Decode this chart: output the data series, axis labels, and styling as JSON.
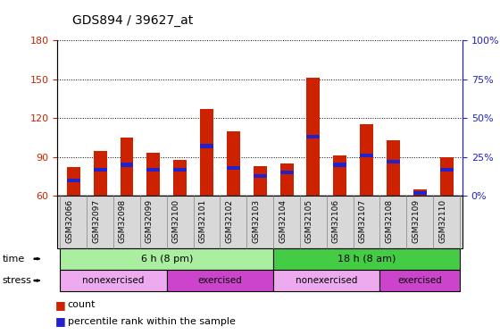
{
  "title": "GDS894 / 39627_at",
  "samples": [
    "GSM32066",
    "GSM32097",
    "GSM32098",
    "GSM32099",
    "GSM32100",
    "GSM32101",
    "GSM32102",
    "GSM32103",
    "GSM32104",
    "GSM32105",
    "GSM32106",
    "GSM32107",
    "GSM32108",
    "GSM32109",
    "GSM32110"
  ],
  "count_values": [
    82,
    95,
    105,
    93,
    88,
    127,
    110,
    83,
    85,
    151,
    91,
    115,
    103,
    65,
    90
  ],
  "percentile_values": [
    10,
    17,
    20,
    17,
    17,
    32,
    18,
    13,
    15,
    38,
    20,
    26,
    22,
    2,
    17
  ],
  "ylim_left": [
    60,
    180
  ],
  "ylim_right": [
    0,
    100
  ],
  "yticks_left": [
    60,
    90,
    120,
    150,
    180
  ],
  "yticks_right": [
    0,
    25,
    50,
    75,
    100
  ],
  "bar_color": "#cc2200",
  "percentile_color": "#2222cc",
  "bar_width": 0.5,
  "percentile_bar_height": 3.0,
  "time_groups": [
    {
      "label": "6 h (8 pm)",
      "start": 0,
      "end": 7,
      "color": "#aaeea0"
    },
    {
      "label": "18 h (8 am)",
      "start": 8,
      "end": 14,
      "color": "#44cc44"
    }
  ],
  "stress_groups": [
    {
      "label": "nonexercised",
      "start": 0,
      "end": 3,
      "color": "#eeaaee"
    },
    {
      "label": "exercised",
      "start": 4,
      "end": 7,
      "color": "#cc44cc"
    },
    {
      "label": "nonexercised",
      "start": 8,
      "end": 11,
      "color": "#eeaaee"
    },
    {
      "label": "exercised",
      "start": 12,
      "end": 14,
      "color": "#cc44cc"
    }
  ],
  "legend_count_label": "count",
  "legend_percentile_label": "percentile rank within the sample",
  "time_label": "time",
  "stress_label": "stress",
  "plot_bg_color": "#ffffff",
  "xtick_bg_color": "#d8d8d8",
  "title_fontsize": 10,
  "axis_fontsize": 8,
  "tick_fontsize": 7.5
}
